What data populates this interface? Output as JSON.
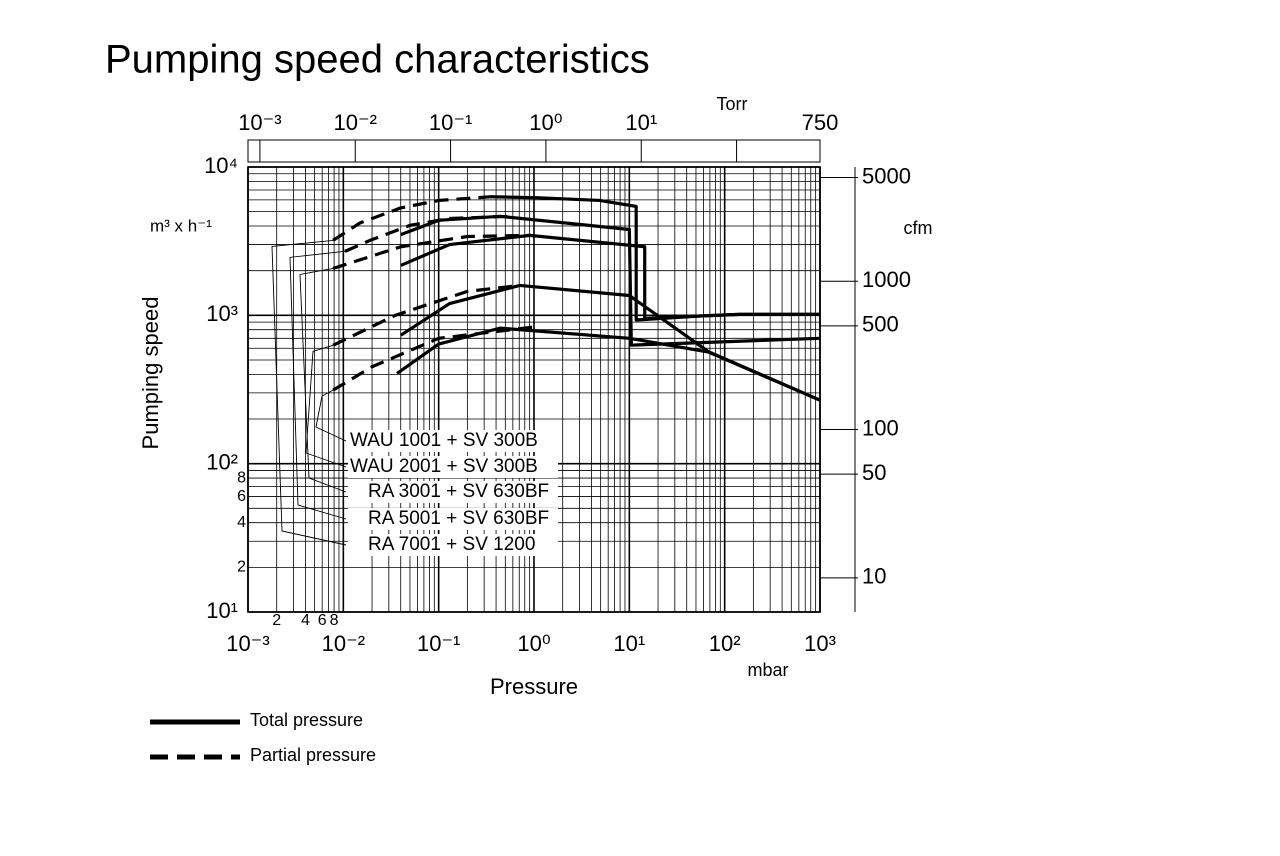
{
  "chart_data": {
    "type": "line",
    "title": "Pumping speed characteristics",
    "xlabel": "Pressure",
    "xunit": "mbar",
    "ylabel": "Pumping speed",
    "yunit": "m³ x h⁻¹",
    "x2unit": "Torr",
    "y2unit": "cfm",
    "log_x": true,
    "log_y": true,
    "grid": true,
    "xlim": [
      0.001,
      1000
    ],
    "xticks": [
      {
        "value": 0.001,
        "label": "10⁻³"
      },
      {
        "value": 0.002,
        "label": "2"
      },
      {
        "value": 0.004,
        "label": "4"
      },
      {
        "value": 0.006,
        "label": "6"
      },
      {
        "value": 0.008,
        "label": "8"
      },
      {
        "value": 0.01,
        "label": "10⁻²"
      },
      {
        "value": 0.1,
        "label": "10⁻¹"
      },
      {
        "value": 1,
        "label": "10⁰"
      },
      {
        "value": 10,
        "label": "10¹"
      },
      {
        "value": 100,
        "label": "10²"
      },
      {
        "value": 1000,
        "label": "10³"
      }
    ],
    "ylim": [
      10,
      10000
    ],
    "yticks": [
      {
        "value": 10,
        "label": "10¹"
      },
      {
        "value": 20,
        "label": "2"
      },
      {
        "value": 40,
        "label": "4"
      },
      {
        "value": 60,
        "label": "6"
      },
      {
        "value": 80,
        "label": "8"
      },
      {
        "value": 100,
        "label": "10²"
      },
      {
        "value": 1000,
        "label": "10³"
      },
      {
        "value": 10000,
        "label": "10⁴"
      }
    ],
    "xgrid": [
      0.001,
      0.002,
      0.003,
      0.004,
      0.005,
      0.006,
      0.007,
      0.008,
      0.009,
      0.01,
      0.02,
      0.03,
      0.04,
      0.05,
      0.06,
      0.07,
      0.08,
      0.09,
      0.1,
      0.2,
      0.3,
      0.4,
      0.5,
      0.6,
      0.7,
      0.8,
      0.9,
      1,
      2,
      3,
      4,
      5,
      6,
      7,
      8,
      9,
      10,
      20,
      30,
      40,
      50,
      60,
      70,
      80,
      90,
      100,
      200,
      300,
      400,
      500,
      600,
      700,
      800,
      900,
      1000
    ],
    "ygrid": [
      10,
      20,
      30,
      40,
      50,
      60,
      70,
      80,
      90,
      100,
      200,
      300,
      400,
      500,
      600,
      700,
      800,
      900,
      1000,
      2000,
      3000,
      4000,
      5000,
      6000,
      7000,
      8000,
      9000,
      10000
    ],
    "x2lim": [
      0.00075,
      750
    ],
    "x2ticks": [
      {
        "value": 0.001,
        "label": "10⁻³"
      },
      {
        "value": 0.01,
        "label": "10⁻²"
      },
      {
        "value": 0.1,
        "label": "10⁻¹"
      },
      {
        "value": 1,
        "label": "10⁰"
      },
      {
        "value": 10,
        "label": "10¹"
      },
      750
    ],
    "x2grid": [
      100
    ],
    "y2lim": [
      5.886,
      5886
    ],
    "y2ticks": [
      5000,
      1000,
      500,
      100,
      50,
      10
    ],
    "legend": {
      "total": "Total pressure",
      "partial": "Partial pressure"
    },
    "color": "#000000",
    "series": [
      {
        "name": "WAU 1001 + SV 300B",
        "partial": {
          "x": [
            0.0078,
            0.02,
            0.1,
            1.15
          ],
          "y": [
            313,
            450,
            700,
            843
          ]
        },
        "total": {
          "x": [
            0.0366,
            0.1,
            0.44,
            10,
            70,
            1000
          ],
          "y": [
            406,
            640,
            820,
            700,
            563,
            268
          ]
        }
      },
      {
        "name": "WAU 2001 + SV 300B",
        "partial": {
          "x": [
            0.0078,
            0.035,
            0.2,
            0.71
          ],
          "y": [
            628,
            1000,
            1450,
            1590
          ]
        },
        "total": {
          "x": [
            0.04,
            0.13,
            0.71,
            10,
            70,
            1000
          ],
          "y": [
            733,
            1200,
            1590,
            1360,
            560,
            268
          ]
        }
      },
      {
        "name": "RA 3001 + SV 630BF",
        "partial": {
          "x": [
            0.0078,
            0.04,
            0.2,
            0.9
          ],
          "y": [
            2070,
            2900,
            3400,
            3460
          ]
        },
        "total": {
          "x": [
            0.04,
            0.13,
            0.9,
            14.5,
            14.5,
            143,
            1000
          ],
          "y": [
            2170,
            3000,
            3460,
            2900,
            955,
            1015,
            1015
          ]
        }
      },
      {
        "name": "RA 5001 + SV 630BF",
        "partial": {
          "x": [
            0.0104,
            0.019,
            0.05,
            0.13,
            0.56
          ],
          "y": [
            2700,
            3200,
            4040,
            4500,
            4650
          ]
        },
        "total": {
          "x": [
            0.04,
            0.1,
            0.44,
            10,
            10.5,
            1000
          ],
          "y": [
            3500,
            4370,
            4650,
            3790,
            630,
            700
          ]
        }
      },
      {
        "name": "RA 7001 + SV 1200",
        "partial": {
          "x": [
            0.0078,
            0.015,
            0.04,
            0.1,
            0.35
          ],
          "y": [
            3200,
            4200,
            5300,
            5950,
            6300
          ]
        },
        "total": {
          "x": [
            0.35,
            1.15,
            4.9,
            11.8,
            11.8,
            55,
            143,
            1000
          ],
          "y": [
            6300,
            6200,
            5950,
            5420,
            930,
            990,
            1015,
            1015
          ]
        }
      }
    ]
  }
}
